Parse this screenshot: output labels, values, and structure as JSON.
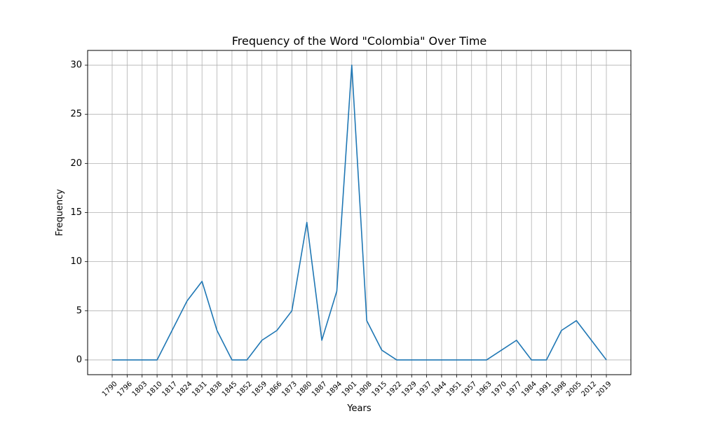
{
  "chart_data": {
    "type": "line",
    "title": "Frequency of the Word \"Colombia\" Over Time",
    "xlabel": "Years",
    "ylabel": "Frequency",
    "x": [
      "1790",
      "1796",
      "1803",
      "1810",
      "1817",
      "1824",
      "1831",
      "1838",
      "1845",
      "1852",
      "1859",
      "1866",
      "1873",
      "1880",
      "1887",
      "1894",
      "1901",
      "1908",
      "1915",
      "1922",
      "1929",
      "1937",
      "1944",
      "1951",
      "1957",
      "1963",
      "1970",
      "1977",
      "1984",
      "1991",
      "1998",
      "2005",
      "2012",
      "2019"
    ],
    "series": [
      {
        "values": [
          0,
          0,
          0,
          0,
          3,
          6,
          8,
          3,
          0,
          0,
          2,
          3,
          5,
          14,
          2,
          7,
          30,
          4,
          1,
          0,
          0,
          0,
          0,
          0,
          0,
          0,
          1,
          2,
          0,
          0,
          3,
          4,
          2,
          0
        ],
        "color": "#1f77b4"
      }
    ],
    "ylim": [
      -1.5,
      31.5
    ],
    "yticks": [
      0,
      5,
      10,
      15,
      20,
      25,
      30
    ],
    "grid": true,
    "legend": "none"
  }
}
